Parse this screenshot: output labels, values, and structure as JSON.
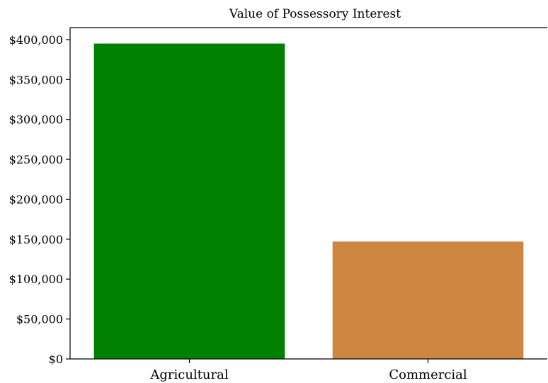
{
  "chart_data": {
    "type": "bar",
    "title": "Value of Possessory Interest",
    "xlabel": "",
    "ylabel": "",
    "categories": [
      "Agricultural",
      "Commercial"
    ],
    "values": [
      395000,
      147000
    ],
    "colors": [
      "#008000",
      "#CD853F"
    ],
    "ylim": [
      0,
      415000
    ],
    "yticks": [
      0,
      50000,
      100000,
      150000,
      200000,
      250000,
      300000,
      350000,
      400000
    ],
    "ytick_labels": [
      "$0",
      "$50,000",
      "$100,000",
      "$150,000",
      "$200,000",
      "$250,000",
      "$300,000",
      "$350,000",
      "$400,000"
    ],
    "grid": false,
    "legend": "none"
  }
}
